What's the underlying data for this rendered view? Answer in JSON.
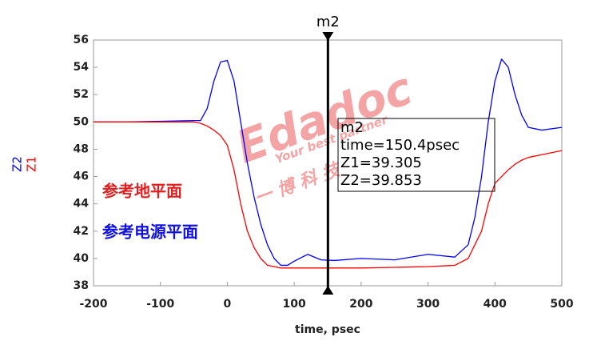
{
  "chart_data": {
    "type": "line",
    "x_label": "time, psec",
    "y_labels": [
      {
        "text": "Z2",
        "color": "#0000ff"
      },
      {
        "text": "Z1",
        "color": "#ff0000"
      }
    ],
    "x": [
      -200,
      -150,
      -100,
      -50,
      -40,
      -30,
      -20,
      -10,
      0,
      10,
      20,
      30,
      40,
      50,
      60,
      70,
      80,
      90,
      100,
      120,
      140,
      160,
      200,
      250,
      300,
      340,
      360,
      370,
      380,
      390,
      400,
      410,
      420,
      430,
      440,
      450,
      470,
      500
    ],
    "series": [
      {
        "name": "Z2",
        "color": "#0000ff",
        "values": [
          50,
          50,
          50.05,
          50.1,
          50.1,
          51,
          53,
          54.4,
          54.5,
          53,
          50,
          47,
          44.5,
          42.5,
          41,
          40,
          39.5,
          39.5,
          39.8,
          40.3,
          39.9,
          39.85,
          40,
          39.9,
          40.3,
          40.1,
          41,
          43,
          46,
          50,
          53,
          54.6,
          54,
          52,
          50.5,
          49.6,
          49.4,
          49.6
        ]
      },
      {
        "name": "Z1",
        "color": "#ff0000",
        "values": [
          50,
          50,
          50,
          50,
          49.9,
          49.7,
          49.4,
          49,
          48.3,
          46.5,
          44,
          42,
          40.8,
          40,
          39.5,
          39.4,
          39.3,
          39.3,
          39.3,
          39.3,
          39.3,
          39.3,
          39.3,
          39.35,
          39.4,
          39.5,
          40,
          41,
          42,
          44,
          45.5,
          46,
          46.5,
          46.9,
          47.2,
          47.4,
          47.6,
          47.9
        ]
      }
    ],
    "xlim": [
      -200,
      500
    ],
    "xticks": [
      -200,
      -100,
      0,
      100,
      200,
      300,
      400,
      500
    ],
    "ylim": [
      38,
      56
    ],
    "yticks": [
      38,
      40,
      42,
      44,
      46,
      48,
      50,
      52,
      54,
      56
    ],
    "grid": false,
    "annotations": [
      {
        "text": "参考地平面",
        "color": "#e02020"
      },
      {
        "text": "参考电源平面",
        "color": "#1010e0"
      }
    ],
    "marker": {
      "name": "m2",
      "x": 150.4,
      "readout": [
        "m2",
        "time=150.4psec",
        "Z1=39.305",
        "Z2=39.853"
      ]
    },
    "watermark": [
      "Edadoc",
      "Your best partner",
      "一 博 科 技"
    ]
  }
}
